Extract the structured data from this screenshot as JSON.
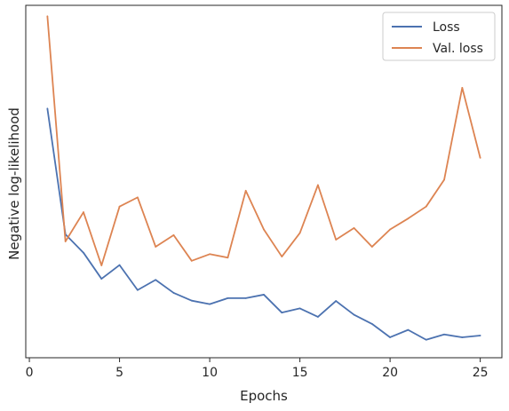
{
  "chart_data": {
    "type": "line",
    "title": "",
    "xlabel": "Epochs",
    "ylabel": "Negative log-likelihood",
    "xlim": [
      -0.2,
      26.2
    ],
    "ylim": [
      0.0,
      1.0
    ],
    "x_ticks": [
      0,
      5,
      10,
      15,
      20,
      25
    ],
    "y_ticks": [],
    "grid": false,
    "legend_position": "top-right",
    "x": [
      1,
      2,
      3,
      4,
      5,
      6,
      7,
      8,
      9,
      10,
      11,
      12,
      13,
      14,
      15,
      16,
      17,
      18,
      19,
      20,
      21,
      22,
      23,
      24,
      25
    ],
    "series": [
      {
        "name": "Loss",
        "color": "#4c72b0",
        "values": [
          0.707,
          0.35,
          0.298,
          0.224,
          0.263,
          0.192,
          0.221,
          0.184,
          0.162,
          0.152,
          0.169,
          0.169,
          0.179,
          0.128,
          0.14,
          0.116,
          0.161,
          0.122,
          0.096,
          0.058,
          0.079,
          0.051,
          0.066,
          0.058,
          0.063
        ]
      },
      {
        "name": "Val. loss",
        "color": "#dd8452",
        "values": [
          0.969,
          0.33,
          0.413,
          0.262,
          0.429,
          0.455,
          0.315,
          0.348,
          0.275,
          0.294,
          0.284,
          0.474,
          0.364,
          0.287,
          0.354,
          0.49,
          0.335,
          0.368,
          0.315,
          0.364,
          0.395,
          0.429,
          0.505,
          0.766,
          0.567
        ]
      }
    ]
  }
}
